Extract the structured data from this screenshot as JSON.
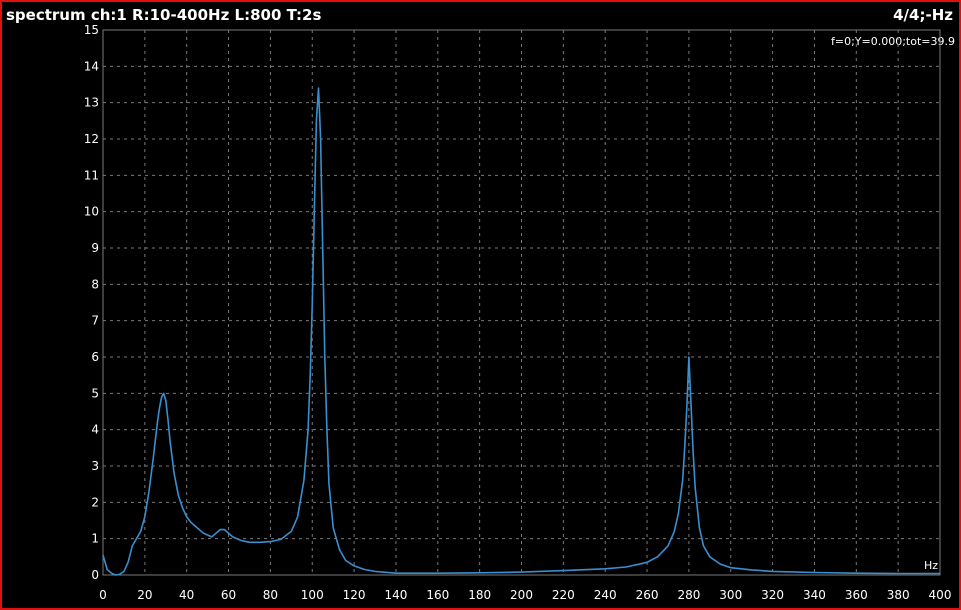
{
  "header": {
    "title": "spectrum ch:1 R:10-400Hz L:800 T:2s",
    "page_indicator": "4/4;-Hz",
    "readout": "f=0;Y=0.000;tot=39.9"
  },
  "colors": {
    "background": "#000000",
    "border": "#e01010",
    "grid": "#7a7a7a",
    "line": "#3a8fd0",
    "text": "#ffffff"
  },
  "chart_data": {
    "type": "line",
    "xlabel": "Hz",
    "ylabel": "",
    "xlim": [
      0,
      400
    ],
    "ylim": [
      0,
      15
    ],
    "grid": true,
    "x_ticks": [
      0,
      20,
      40,
      60,
      80,
      100,
      120,
      140,
      160,
      180,
      200,
      220,
      240,
      260,
      280,
      300,
      320,
      340,
      360,
      380,
      400
    ],
    "y_ticks": [
      0,
      1,
      2,
      3,
      4,
      5,
      6,
      7,
      8,
      9,
      10,
      11,
      12,
      13,
      14,
      15
    ],
    "series": [
      {
        "x": [
          0,
          2,
          4,
          6,
          8,
          10,
          12,
          14,
          16,
          18,
          20,
          22,
          24,
          26,
          27,
          28,
          29,
          30,
          31,
          32,
          34,
          36,
          38,
          40,
          42,
          44,
          46,
          48,
          50,
          52,
          54,
          56,
          58,
          60,
          62,
          64,
          66,
          70,
          75,
          80,
          85,
          90,
          93,
          96,
          98,
          99,
          100,
          101,
          102,
          103,
          104,
          105,
          106,
          107,
          108,
          110,
          113,
          116,
          120,
          125,
          130,
          140,
          160,
          180,
          200,
          220,
          240,
          250,
          260,
          265,
          270,
          273,
          275,
          277,
          278,
          279,
          280,
          281,
          282,
          283,
          285,
          287,
          290,
          295,
          300,
          310,
          320,
          340,
          360,
          380,
          400
        ],
        "values": [
          0.55,
          0.15,
          0.05,
          0.0,
          0.02,
          0.1,
          0.35,
          0.8,
          1.0,
          1.2,
          1.6,
          2.3,
          3.2,
          4.2,
          4.6,
          4.9,
          5.0,
          4.8,
          4.3,
          3.7,
          2.8,
          2.2,
          1.85,
          1.6,
          1.45,
          1.35,
          1.25,
          1.15,
          1.1,
          1.05,
          1.15,
          1.25,
          1.25,
          1.15,
          1.05,
          1.0,
          0.95,
          0.9,
          0.9,
          0.92,
          0.98,
          1.2,
          1.6,
          2.6,
          4.0,
          5.5,
          7.5,
          10.0,
          12.5,
          13.4,
          12.0,
          9.0,
          6.0,
          4.0,
          2.5,
          1.3,
          0.7,
          0.4,
          0.25,
          0.15,
          0.1,
          0.05,
          0.05,
          0.06,
          0.08,
          0.12,
          0.17,
          0.22,
          0.35,
          0.5,
          0.8,
          1.2,
          1.7,
          2.6,
          3.5,
          4.6,
          6.0,
          4.7,
          3.4,
          2.4,
          1.3,
          0.8,
          0.5,
          0.3,
          0.2,
          0.14,
          0.1,
          0.07,
          0.05,
          0.04,
          0.04
        ]
      }
    ]
  }
}
